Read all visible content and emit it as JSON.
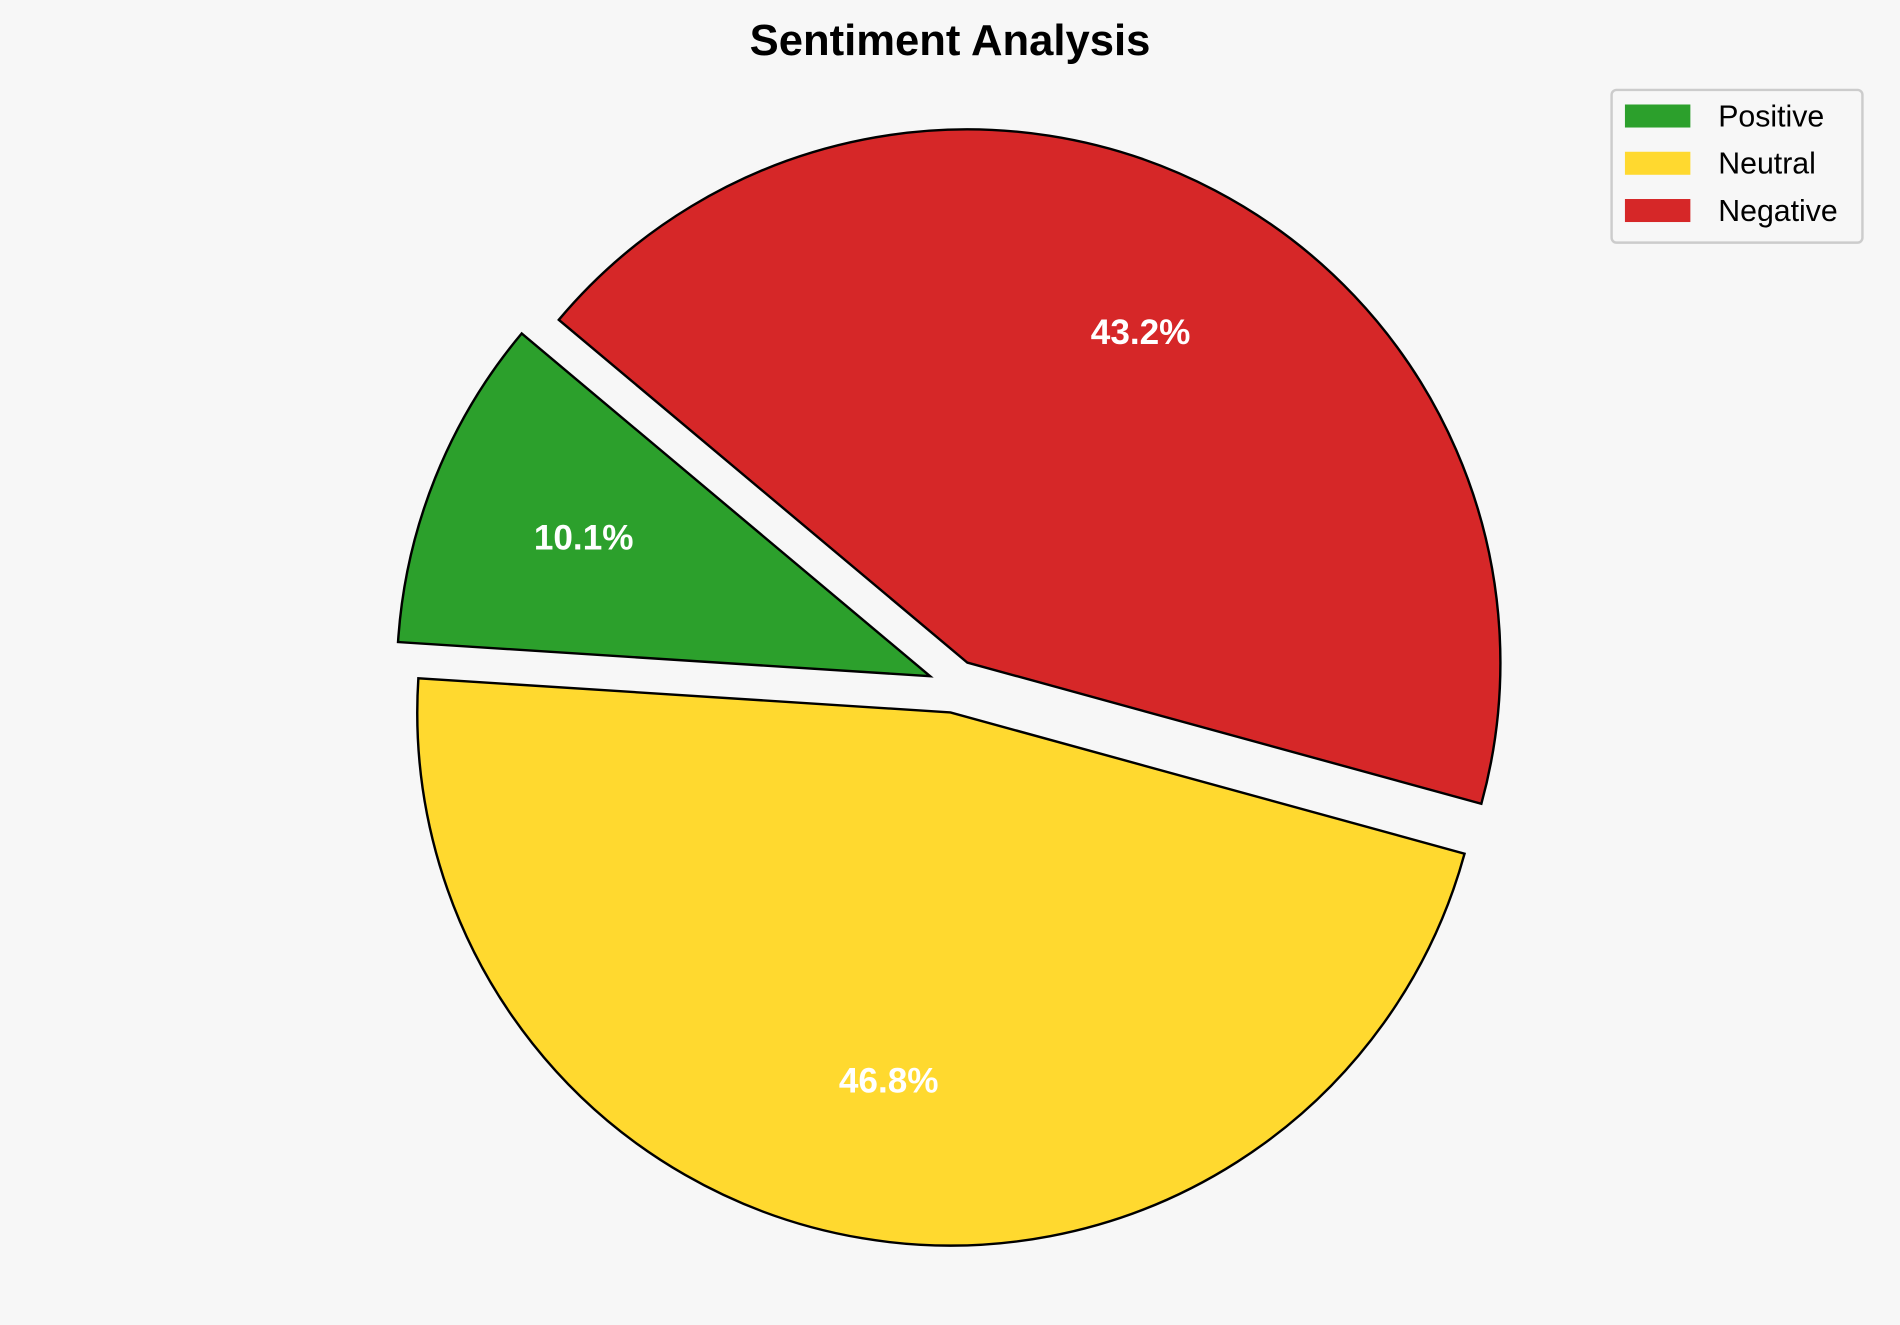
{
  "chart_data": {
    "type": "pie",
    "title": "Sentiment Analysis",
    "labels": [
      "Positive",
      "Neutral",
      "Negative"
    ],
    "values": [
      10.1,
      46.8,
      43.2
    ],
    "value_labels": [
      "10.1%",
      "46.8%",
      "43.2%"
    ],
    "colors": [
      "#2ca02c",
      "#ffd92f",
      "#d62728"
    ],
    "start_angle": 140,
    "explode": [
      0.05,
      0.05,
      0.05
    ],
    "legend_position": "top-right"
  }
}
